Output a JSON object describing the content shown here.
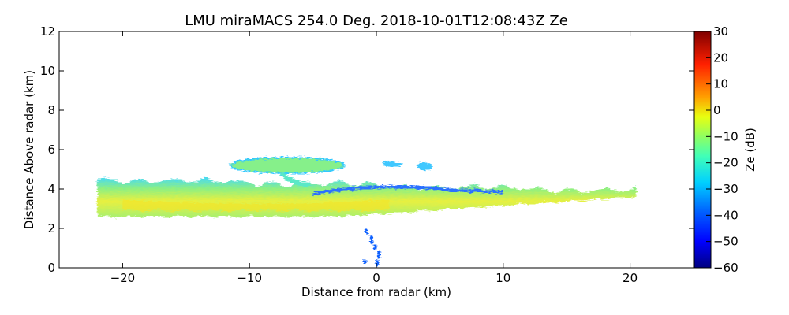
{
  "chart_data": {
    "type": "heatmap",
    "title": "LMU miraMACS 254.0 Deg. 2018-10-01T12:08:43Z  Ze",
    "xlabel": "Distance from radar (km)",
    "ylabel": "Distance Above radar  (km)",
    "xlim": [
      -25,
      25
    ],
    "ylim": [
      0,
      12
    ],
    "xticks": [
      -20,
      -10,
      0,
      10,
      20
    ],
    "xtick_labels": [
      "−20",
      "−10",
      "0",
      "10",
      "20"
    ],
    "yticks": [
      0,
      2,
      4,
      6,
      8,
      10,
      12
    ],
    "ytick_labels": [
      "0",
      "2",
      "4",
      "6",
      "8",
      "10",
      "12"
    ],
    "colorbar": {
      "label": "Ze (dB)",
      "range": [
        -60,
        30
      ],
      "ticks": [
        30,
        20,
        10,
        0,
        -10,
        -20,
        -30,
        -40,
        -50,
        -60
      ],
      "tick_labels": [
        "30",
        "20",
        "10",
        "0",
        "−10",
        "−20",
        "−30",
        "−40",
        "−50",
        "−60"
      ],
      "colormap": "jet",
      "colors": [
        "#000080",
        "#0000ff",
        "#0080ff",
        "#00ffff",
        "#80ff80",
        "#ffff00",
        "#ff8000",
        "#ff0000",
        "#800000"
      ]
    },
    "regions": [
      {
        "name": "main cloud layer",
        "x_range": [
          -22,
          20.5
        ],
        "z_bottom": [
          2.6,
          3.6
        ],
        "z_top": [
          4.5,
          3.9
        ],
        "ze_range": [
          -25,
          5
        ]
      },
      {
        "name": "upper cloud patch",
        "x_range": [
          -11.5,
          -2.5
        ],
        "z_range": [
          4.8,
          5.6
        ],
        "ze_range": [
          -25,
          -10
        ]
      },
      {
        "name": "small echoes",
        "x_range": [
          0.5,
          4.5
        ],
        "z_range": [
          5.0,
          5.4
        ],
        "ze_range": [
          -35,
          -20
        ]
      },
      {
        "name": "near-field clutter",
        "x_range": [
          -1.3,
          0.4
        ],
        "z_range": [
          0,
          1.9
        ],
        "ze_range": [
          -45,
          -30
        ]
      }
    ]
  }
}
